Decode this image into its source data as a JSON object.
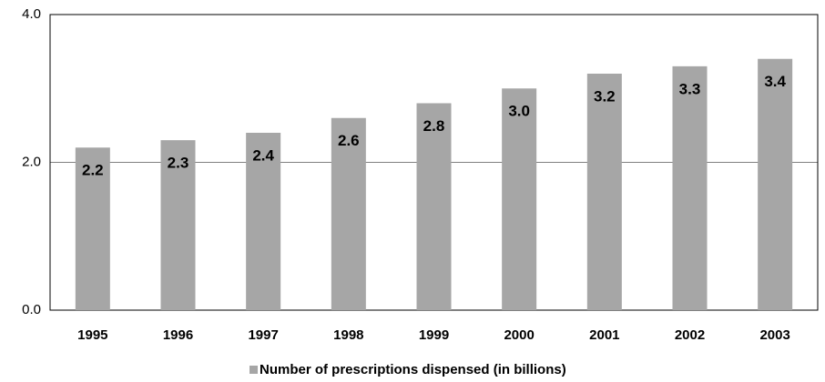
{
  "chart_data": {
    "type": "bar",
    "categories": [
      "1995",
      "1996",
      "1997",
      "1998",
      "1999",
      "2000",
      "2001",
      "2002",
      "2003"
    ],
    "series": [
      {
        "name": "Number of prescriptions dispensed (in billions)",
        "color": "#a6a6a6",
        "values": [
          2.2,
          2.3,
          2.4,
          2.6,
          2.8,
          3.0,
          3.2,
          3.3,
          3.4
        ],
        "value_labels": [
          "2.2",
          "2.3",
          "2.4",
          "2.6",
          "2.8",
          "3.0",
          "3.2",
          "3.3",
          "3.4"
        ]
      }
    ],
    "ylim": [
      0,
      4
    ],
    "yticks": [
      {
        "value": 0,
        "label": "0.0"
      },
      {
        "value": 2,
        "label": "2.0"
      },
      {
        "value": 4,
        "label": "4.0"
      }
    ],
    "grid": true,
    "legend": "bottom"
  }
}
